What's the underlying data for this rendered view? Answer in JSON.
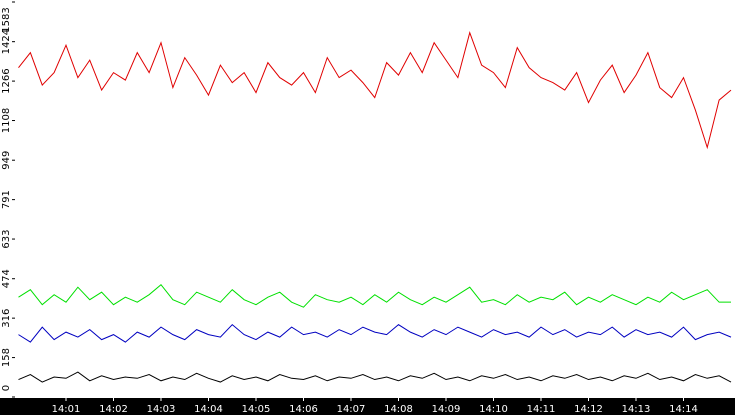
{
  "chart_data": {
    "type": "line",
    "categories": [
      null,
      null,
      null,
      null,
      "14:01",
      null,
      null,
      null,
      "14:02",
      null,
      null,
      null,
      "14:03",
      null,
      null,
      null,
      "14:04",
      null,
      null,
      null,
      "14:05",
      null,
      null,
      null,
      "14:06",
      null,
      null,
      null,
      "14:07",
      null,
      null,
      null,
      "14:08",
      null,
      null,
      null,
      "14:09",
      null,
      null,
      null,
      "14:10",
      null,
      null,
      null,
      "14:11",
      null,
      null,
      null,
      "14:12",
      null,
      null,
      null,
      "14:13",
      null,
      null,
      null,
      "14:14",
      null,
      null,
      null,
      null
    ],
    "series": [
      {
        "color": "#e00000",
        "values": [
          1320,
          1380,
          1250,
          1300,
          1410,
          1280,
          1350,
          1230,
          1300,
          1270,
          1380,
          1300,
          1420,
          1240,
          1360,
          1290,
          1210,
          1330,
          1260,
          1300,
          1220,
          1340,
          1280,
          1250,
          1300,
          1220,
          1360,
          1280,
          1310,
          1260,
          1200,
          1340,
          1290,
          1380,
          1300,
          1420,
          1350,
          1280,
          1460,
          1330,
          1300,
          1240,
          1400,
          1320,
          1280,
          1260,
          1230,
          1300,
          1180,
          1270,
          1330,
          1220,
          1290,
          1380,
          1240,
          1200,
          1280,
          1150,
          1000,
          1190,
          1230
        ]
      },
      {
        "color": "#00e000",
        "values": [
          400,
          430,
          370,
          410,
          380,
          440,
          390,
          420,
          370,
          400,
          380,
          410,
          450,
          390,
          370,
          420,
          400,
          380,
          430,
          390,
          370,
          400,
          420,
          380,
          360,
          410,
          390,
          380,
          400,
          370,
          410,
          380,
          420,
          390,
          370,
          400,
          380,
          410,
          440,
          380,
          390,
          370,
          410,
          380,
          400,
          390,
          420,
          370,
          400,
          380,
          410,
          390,
          370,
          400,
          380,
          420,
          390,
          410,
          430,
          380,
          380
        ]
      },
      {
        "color": "#0000c0",
        "values": [
          250,
          220,
          280,
          230,
          260,
          240,
          270,
          230,
          250,
          220,
          260,
          240,
          280,
          250,
          230,
          270,
          250,
          240,
          290,
          250,
          230,
          260,
          240,
          280,
          250,
          260,
          240,
          270,
          250,
          280,
          260,
          250,
          290,
          260,
          240,
          270,
          250,
          280,
          260,
          240,
          270,
          250,
          260,
          240,
          280,
          250,
          270,
          240,
          260,
          250,
          280,
          240,
          270,
          250,
          260,
          240,
          280,
          230,
          250,
          260,
          240
        ]
      },
      {
        "color": "#000000",
        "values": [
          70,
          90,
          60,
          80,
          75,
          100,
          65,
          85,
          70,
          80,
          75,
          90,
          65,
          80,
          70,
          95,
          75,
          60,
          85,
          70,
          80,
          65,
          90,
          75,
          70,
          85,
          65,
          80,
          75,
          90,
          70,
          80,
          65,
          85,
          75,
          95,
          70,
          80,
          65,
          85,
          75,
          90,
          70,
          80,
          65,
          85,
          75,
          90,
          70,
          80,
          65,
          85,
          75,
          95,
          70,
          80,
          65,
          90,
          75,
          85,
          60
        ]
      }
    ],
    "ylim": [
      0,
      1583
    ],
    "yticks": [
      0,
      158,
      316,
      474,
      633,
      791,
      949,
      1108,
      1266,
      1424,
      1583
    ],
    "grid": false
  }
}
